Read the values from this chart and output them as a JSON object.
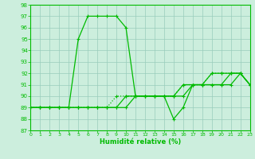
{
  "xlabel": "Humidité relative (%)",
  "xlim": [
    0,
    23
  ],
  "ylim": [
    87,
    98
  ],
  "yticks": [
    87,
    88,
    89,
    90,
    91,
    92,
    93,
    94,
    95,
    96,
    97,
    98
  ],
  "xticks": [
    0,
    1,
    2,
    3,
    4,
    5,
    6,
    7,
    8,
    9,
    10,
    11,
    12,
    13,
    14,
    15,
    16,
    17,
    18,
    19,
    20,
    21,
    22,
    23
  ],
  "background_color": "#cceedd",
  "grid_color": "#99ccbb",
  "line_color": "#00bb00",
  "lines": [
    {
      "y": [
        89,
        89,
        89,
        89,
        89,
        95,
        97,
        97,
        97,
        97,
        96,
        90,
        90,
        90,
        90,
        88,
        89,
        91,
        91,
        92,
        92,
        92,
        92,
        91
      ],
      "style": "-",
      "marker": "+"
    },
    {
      "y": [
        89,
        89,
        89,
        89,
        89,
        89,
        89,
        89,
        89,
        90,
        90,
        90,
        90,
        90,
        90,
        90,
        91,
        91,
        91,
        92,
        92,
        92,
        92,
        91
      ],
      "style": ":",
      "marker": "+"
    },
    {
      "y": [
        89,
        89,
        89,
        89,
        89,
        89,
        89,
        89,
        89,
        89,
        90,
        90,
        90,
        90,
        90,
        90,
        91,
        91,
        91,
        91,
        91,
        92,
        92,
        91
      ],
      "style": "-",
      "marker": "+"
    },
    {
      "y": [
        89,
        89,
        89,
        89,
        89,
        89,
        89,
        89,
        89,
        89,
        89,
        90,
        90,
        90,
        90,
        90,
        90,
        91,
        91,
        91,
        91,
        91,
        92,
        91
      ],
      "style": "-",
      "marker": "+"
    }
  ]
}
